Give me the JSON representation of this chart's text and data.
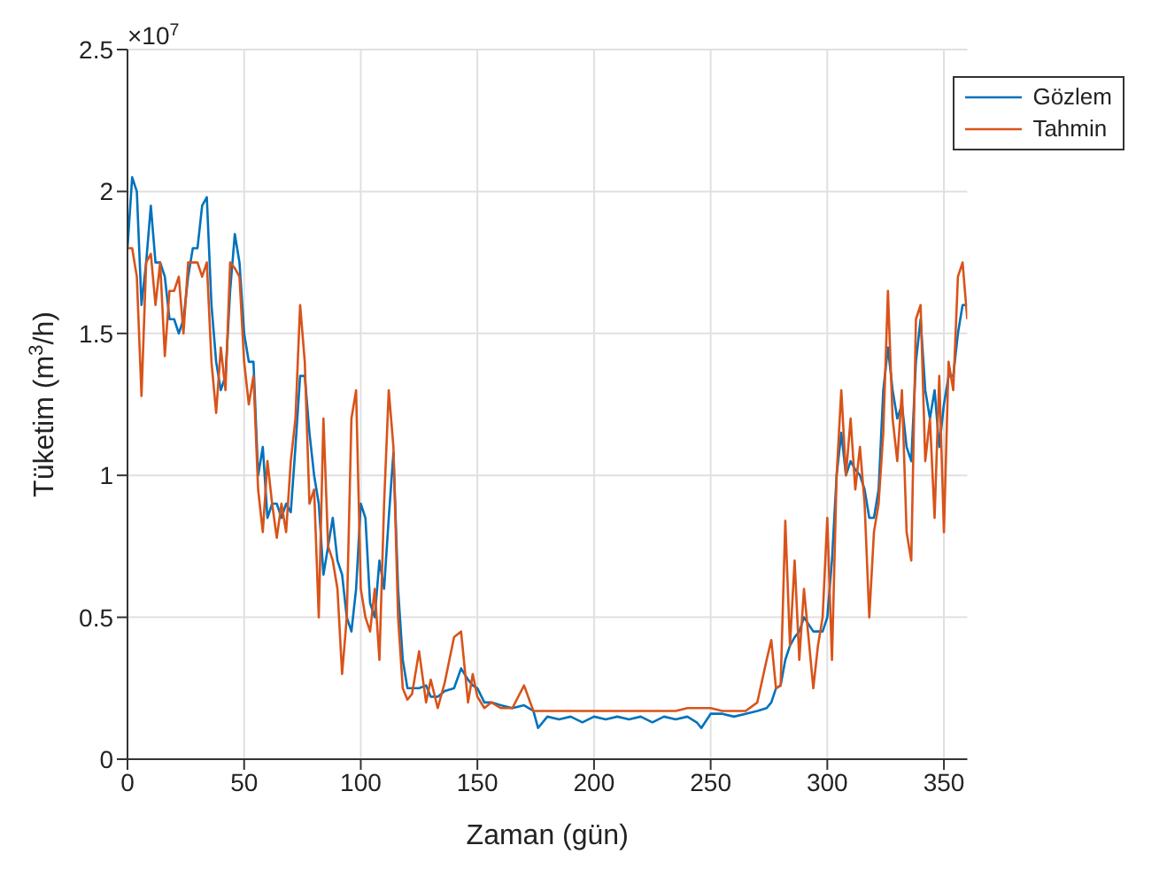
{
  "chart_data": {
    "type": "line",
    "xlabel": "Zaman (gün)",
    "ylabel": "Tüketim (m$^{3}$/h)",
    "annotations": [
      "×10$^{7}$"
    ],
    "x": [
      0,
      2,
      4,
      6,
      8,
      10,
      12,
      14,
      16,
      18,
      20,
      22,
      24,
      26,
      28,
      30,
      32,
      34,
      36,
      38,
      40,
      42,
      44,
      46,
      48,
      50,
      52,
      54,
      56,
      58,
      60,
      62,
      64,
      66,
      68,
      70,
      72,
      74,
      76,
      78,
      80,
      82,
      84,
      86,
      88,
      90,
      92,
      94,
      96,
      98,
      100,
      102,
      104,
      106,
      108,
      110,
      112,
      114,
      116,
      118,
      120,
      122,
      125,
      128,
      130,
      133,
      136,
      140,
      143,
      146,
      148,
      150,
      153,
      156,
      160,
      165,
      170,
      174,
      176,
      180,
      185,
      190,
      195,
      200,
      205,
      210,
      215,
      220,
      225,
      230,
      235,
      240,
      244,
      246,
      250,
      255,
      260,
      265,
      270,
      274,
      276,
      278,
      280,
      282,
      284,
      286,
      288,
      290,
      294,
      296,
      298,
      300,
      302,
      304,
      306,
      308,
      310,
      312,
      314,
      316,
      318,
      320,
      322,
      324,
      326,
      328,
      330,
      332,
      334,
      336,
      338,
      340,
      342,
      344,
      346,
      348,
      350,
      352,
      354,
      356,
      358,
      360
    ],
    "series": [
      {
        "name": "Gözlem",
        "color": "#0072bd",
        "values": [
          1.8,
          2.05,
          2.0,
          1.6,
          1.75,
          1.95,
          1.75,
          1.75,
          1.7,
          1.55,
          1.55,
          1.5,
          1.55,
          1.7,
          1.8,
          1.8,
          1.95,
          1.98,
          1.6,
          1.4,
          1.3,
          1.35,
          1.65,
          1.85,
          1.75,
          1.5,
          1.4,
          1.4,
          1.0,
          1.1,
          0.85,
          0.9,
          0.9,
          0.85,
          0.9,
          0.87,
          1.1,
          1.35,
          1.35,
          1.15,
          1.0,
          0.9,
          0.65,
          0.75,
          0.85,
          0.7,
          0.65,
          0.5,
          0.45,
          0.6,
          0.9,
          0.85,
          0.55,
          0.5,
          0.7,
          0.6,
          0.85,
          1.08,
          0.6,
          0.35,
          0.25,
          0.25,
          0.25,
          0.26,
          0.22,
          0.22,
          0.24,
          0.25,
          0.32,
          0.28,
          0.26,
          0.25,
          0.2,
          0.2,
          0.19,
          0.18,
          0.19,
          0.17,
          0.11,
          0.15,
          0.14,
          0.15,
          0.13,
          0.15,
          0.14,
          0.15,
          0.14,
          0.15,
          0.13,
          0.15,
          0.14,
          0.15,
          0.13,
          0.11,
          0.16,
          0.16,
          0.15,
          0.16,
          0.17,
          0.18,
          0.2,
          0.25,
          0.26,
          0.35,
          0.4,
          0.43,
          0.45,
          0.5,
          0.45,
          0.45,
          0.45,
          0.5,
          0.7,
          1.0,
          1.15,
          1.0,
          1.05,
          1.02,
          1.0,
          0.95,
          0.85,
          0.85,
          0.95,
          1.3,
          1.45,
          1.3,
          1.2,
          1.25,
          1.1,
          1.05,
          1.4,
          1.55,
          1.3,
          1.2,
          1.3,
          1.1,
          1.25,
          1.35,
          1.35,
          1.5,
          1.6,
          1.6
        ]
      },
      {
        "name": "Tahmin",
        "color": "#d95319",
        "values": [
          1.8,
          1.8,
          1.7,
          1.28,
          1.75,
          1.78,
          1.6,
          1.75,
          1.42,
          1.65,
          1.65,
          1.7,
          1.5,
          1.75,
          1.75,
          1.75,
          1.7,
          1.75,
          1.4,
          1.22,
          1.45,
          1.3,
          1.75,
          1.73,
          1.7,
          1.4,
          1.25,
          1.35,
          0.95,
          0.8,
          1.05,
          0.9,
          0.78,
          0.9,
          0.8,
          1.05,
          1.2,
          1.6,
          1.4,
          0.9,
          0.95,
          0.5,
          1.2,
          0.75,
          0.7,
          0.6,
          0.3,
          0.5,
          1.2,
          1.3,
          0.6,
          0.5,
          0.45,
          0.6,
          0.35,
          0.9,
          1.3,
          1.1,
          0.5,
          0.25,
          0.21,
          0.23,
          0.38,
          0.2,
          0.28,
          0.18,
          0.27,
          0.43,
          0.45,
          0.2,
          0.3,
          0.22,
          0.18,
          0.2,
          0.18,
          0.18,
          0.26,
          0.17,
          0.17,
          0.17,
          0.17,
          0.17,
          0.17,
          0.17,
          0.17,
          0.17,
          0.17,
          0.17,
          0.17,
          0.17,
          0.17,
          0.18,
          0.18,
          0.18,
          0.18,
          0.17,
          0.17,
          0.17,
          0.2,
          0.35,
          0.42,
          0.25,
          0.26,
          0.84,
          0.4,
          0.7,
          0.35,
          0.6,
          0.25,
          0.4,
          0.5,
          0.85,
          0.35,
          1.0,
          1.3,
          1.0,
          1.2,
          0.95,
          1.1,
          0.9,
          0.5,
          0.8,
          0.9,
          1.15,
          1.65,
          1.2,
          1.05,
          1.3,
          0.8,
          0.7,
          1.55,
          1.6,
          1.05,
          1.2,
          0.85,
          1.35,
          0.8,
          1.4,
          1.3,
          1.7,
          1.75,
          1.55
        ]
      }
    ],
    "xlim": [
      0,
      360
    ],
    "xticks": [
      0,
      50,
      100,
      150,
      200,
      250,
      300,
      350
    ],
    "ylim": [
      0,
      2.5
    ],
    "yticks": [
      0,
      0.5,
      1,
      1.5,
      2,
      2.5
    ],
    "grid": true,
    "legend": "top right",
    "marker": "none",
    "line_style": "solid"
  }
}
